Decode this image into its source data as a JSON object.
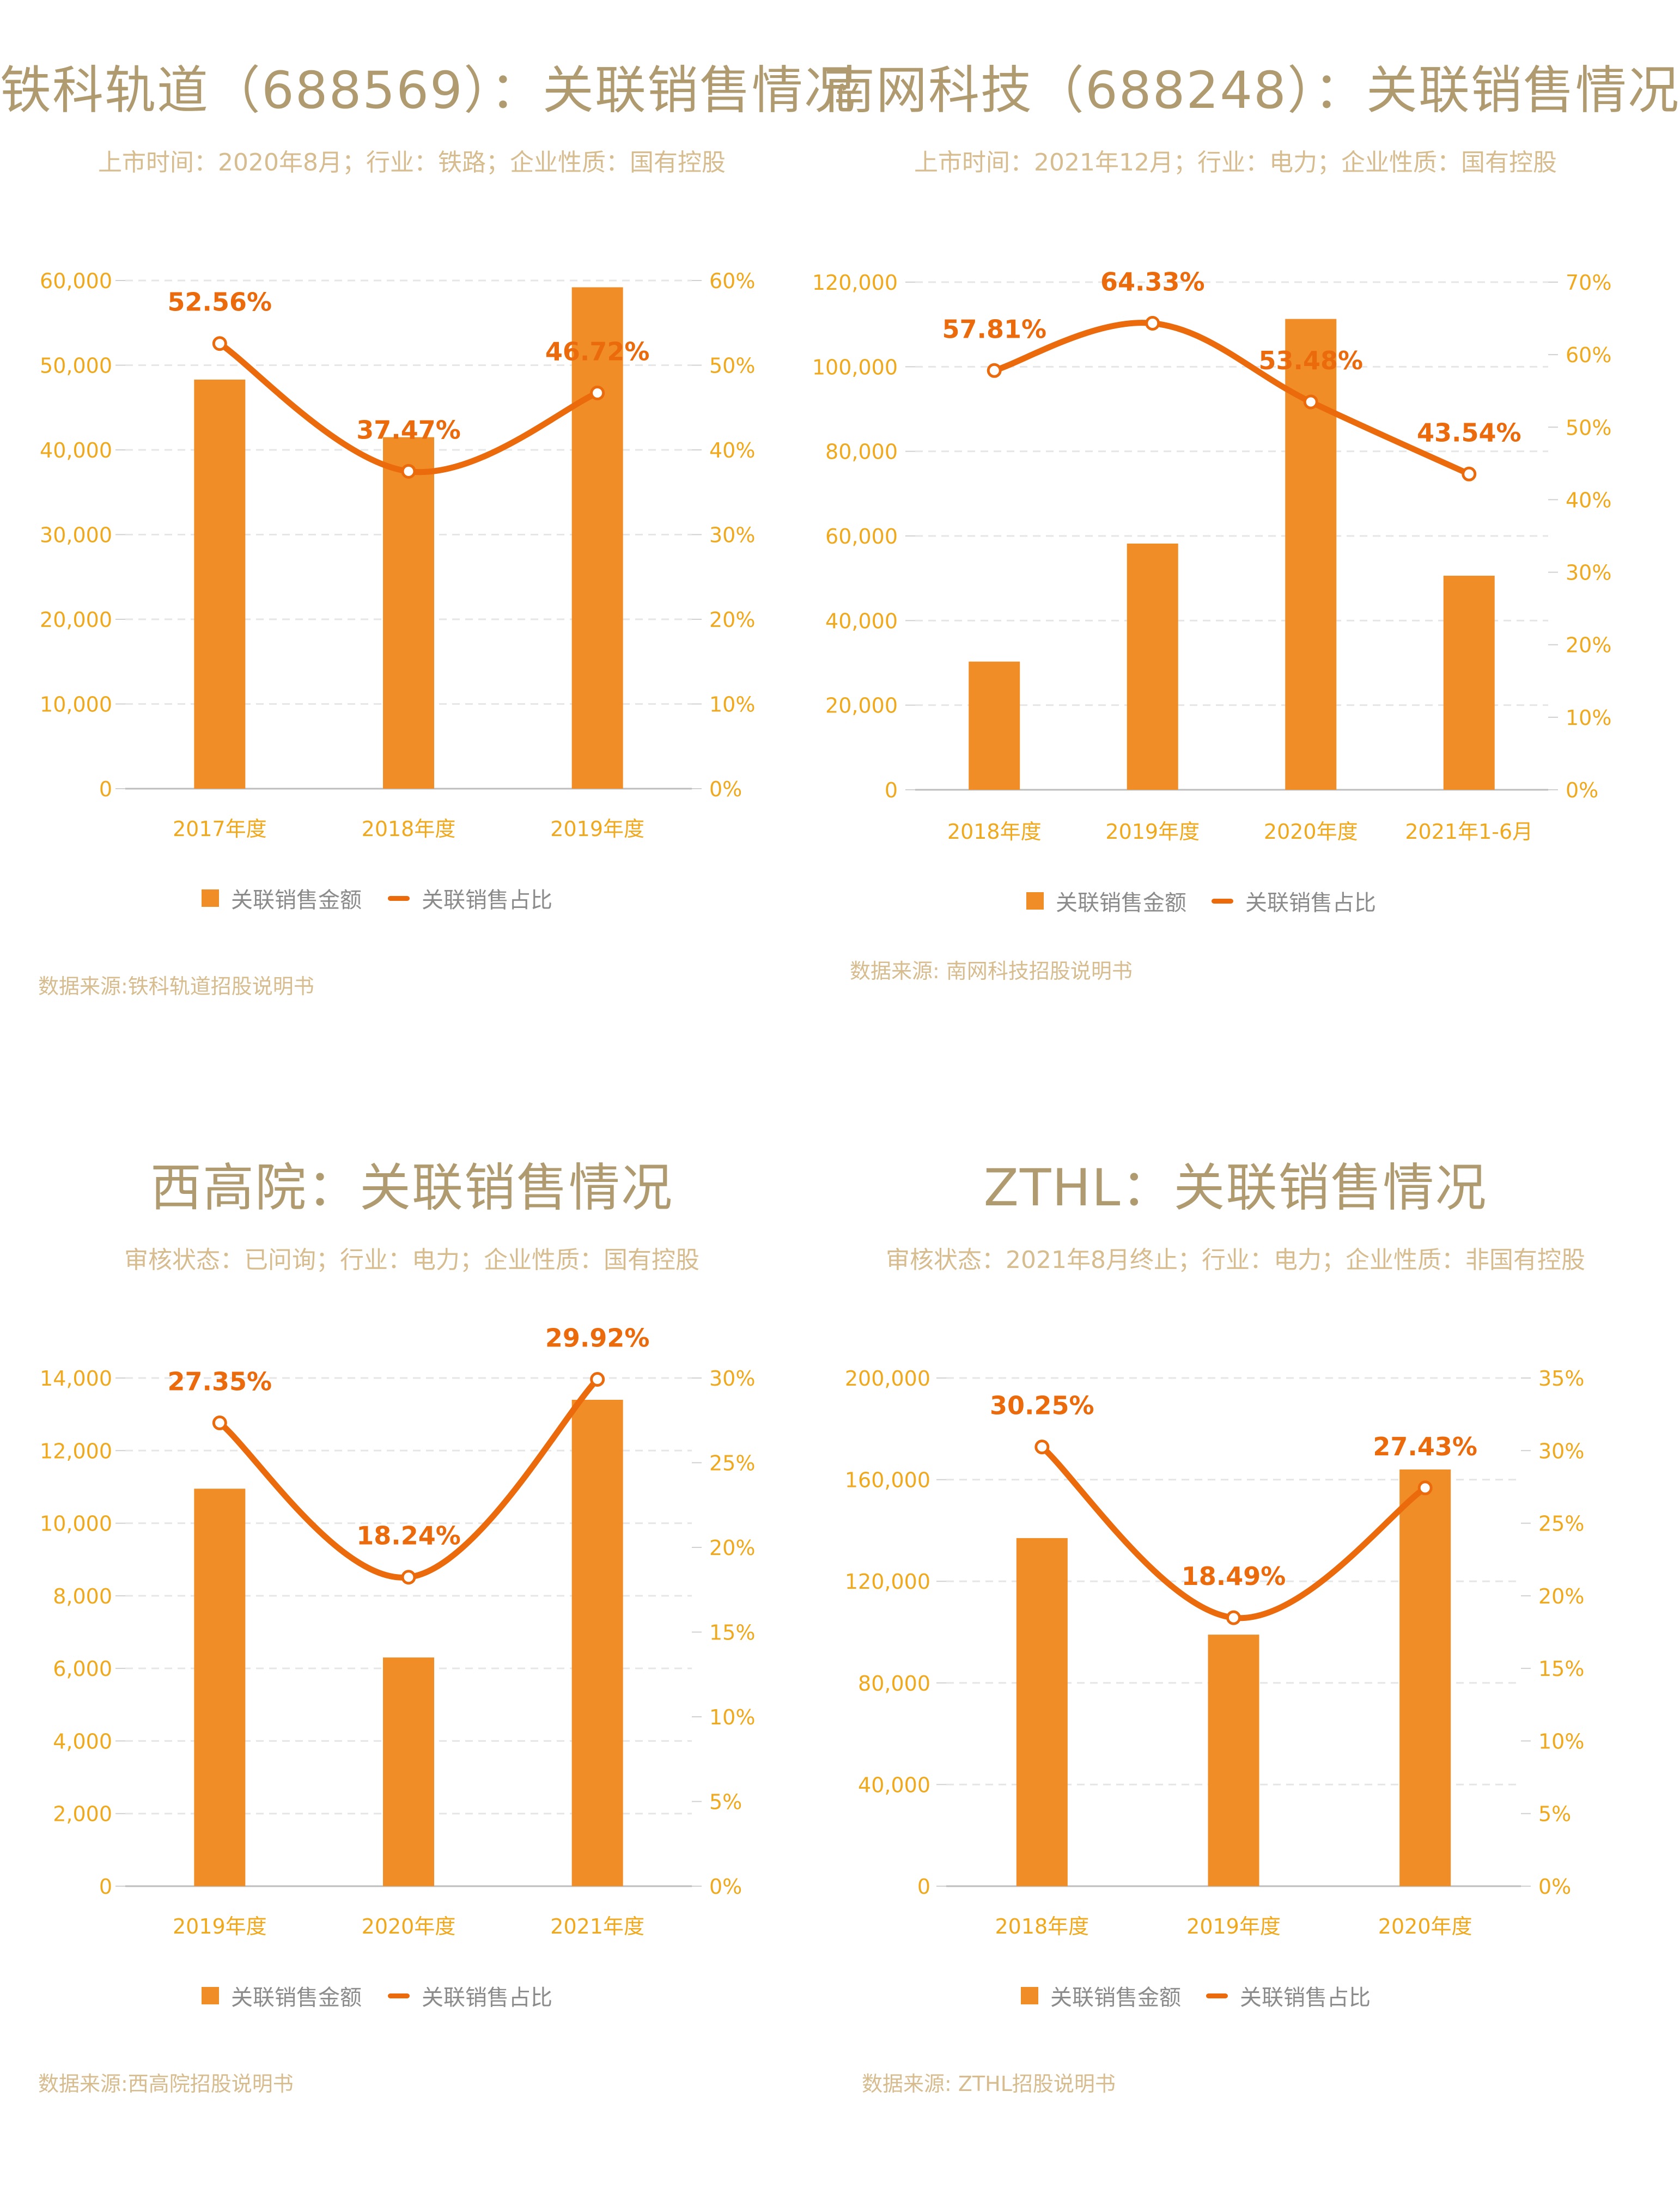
{
  "legend": {
    "bar_label": "关联销售金额",
    "line_label": "关联销售占比"
  },
  "colors": {
    "bar": "#f18d26",
    "line": "#ea6a0c",
    "axis_text": "#f0a81c",
    "title": "#b09a6f",
    "subtitle": "#d6bc8e"
  },
  "chart_data": [
    {
      "type": "bar+line",
      "title": "铁科轨道（688569）：关联销售情况",
      "subtitle": "上市时间：2020年8月；行业：铁路；企业性质：国有控股",
      "source": "数据来源:铁科轨道招股说明书",
      "categories": [
        "2017年度",
        "2018年度",
        "2019年度"
      ],
      "bar_values": [
        48300,
        41500,
        59200
      ],
      "line_values": [
        52.56,
        37.47,
        46.72
      ],
      "line_labels": [
        "52.56%",
        "37.47%",
        "46.72%"
      ],
      "y_left_ticks": [
        "0",
        "10,000",
        "20,000",
        "30,000",
        "40,000",
        "50,000",
        "60,000"
      ],
      "y_right_ticks": [
        "0%",
        "10%",
        "20%",
        "30%",
        "40%",
        "50%",
        "60%"
      ],
      "ylim_left": [
        0,
        60000
      ],
      "ylim_right": [
        0,
        60
      ]
    },
    {
      "type": "bar+line",
      "title": "南网科技（688248）：关联销售情况",
      "subtitle": "上市时间：2021年12月；行业：电力；企业性质：国有控股",
      "source": "数据来源: 南网科技招股说明书",
      "categories": [
        "2018年度",
        "2019年度",
        "2020年度",
        "2021年1-6月"
      ],
      "bar_values": [
        30300,
        58200,
        111300,
        50600
      ],
      "line_values": [
        57.81,
        64.33,
        53.48,
        43.54
      ],
      "line_labels": [
        "57.81%",
        "64.33%",
        "53.48%",
        "43.54%"
      ],
      "y_left_ticks": [
        "0",
        "20,000",
        "40,000",
        "60,000",
        "80,000",
        "100,000",
        "120,000"
      ],
      "y_right_ticks": [
        "0%",
        "10%",
        "20%",
        "30%",
        "40%",
        "50%",
        "60%",
        "70%"
      ],
      "ylim_left": [
        0,
        120000
      ],
      "ylim_right": [
        0,
        70
      ]
    },
    {
      "type": "bar+line",
      "title": "西高院：关联销售情况",
      "subtitle": "审核状态：已问询；行业：电力；企业性质：国有控股",
      "source": "数据来源:西高院招股说明书",
      "categories": [
        "2019年度",
        "2020年度",
        "2021年度"
      ],
      "bar_values": [
        10950,
        6300,
        13400
      ],
      "line_values": [
        27.35,
        18.24,
        29.92
      ],
      "line_labels": [
        "27.35%",
        "18.24%",
        "29.92%"
      ],
      "y_left_ticks": [
        "0",
        "2,000",
        "4,000",
        "6,000",
        "8,000",
        "10,000",
        "12,000",
        "14,000"
      ],
      "y_right_ticks": [
        "0%",
        "5%",
        "10%",
        "15%",
        "20%",
        "25%",
        "30%"
      ],
      "ylim_left": [
        0,
        14000
      ],
      "ylim_right": [
        0,
        30
      ]
    },
    {
      "type": "bar+line",
      "title": "ZTHL：关联销售情况",
      "subtitle": "审核状态：2021年8月终止；行业：电力；企业性质：非国有控股",
      "source": "数据来源: ZTHL招股说明书",
      "categories": [
        "2018年度",
        "2019年度",
        "2020年度"
      ],
      "bar_values": [
        137000,
        99000,
        164000
      ],
      "line_values": [
        30.25,
        18.49,
        27.43
      ],
      "line_labels": [
        "30.25%",
        "18.49%",
        "27.43%"
      ],
      "y_left_ticks": [
        "0",
        "40,000",
        "80,000",
        "120,000",
        "160,000",
        "200,000"
      ],
      "y_right_ticks": [
        "0%",
        "5%",
        "10%",
        "15%",
        "20%",
        "25%",
        "30%",
        "35%"
      ],
      "ylim_left": [
        0,
        200000
      ],
      "ylim_right": [
        0,
        35
      ]
    }
  ]
}
